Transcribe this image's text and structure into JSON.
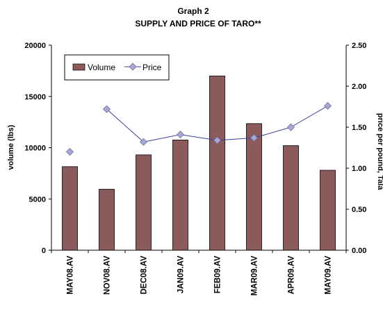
{
  "chart_data": {
    "type": "bar",
    "title": "Graph 2",
    "subtitle": "SUPPLY AND PRICE OF TARO**",
    "categories": [
      "MAY08.AV",
      "NOV08.AV",
      "DEC08.AV",
      "JAN09.AV",
      "FEB09.AV",
      "MAR09.AV",
      "APR09.AV",
      "MAY09.AV"
    ],
    "series": [
      {
        "name": "Volume",
        "type": "bar",
        "axis": "left",
        "color": "#8B5A5A",
        "values": [
          8150,
          5950,
          9300,
          10750,
          17000,
          12350,
          10200,
          7800
        ]
      },
      {
        "name": "Price",
        "type": "line",
        "axis": "right",
        "color": "#3B3F9C",
        "marker_color": "#A7A8D2",
        "values": [
          1.2,
          1.72,
          1.32,
          1.41,
          1.34,
          1.37,
          1.5,
          1.76
        ],
        "connected": [
          false,
          true,
          true,
          true,
          true,
          true,
          true,
          true
        ]
      }
    ],
    "ylabel": "volume (lbs)",
    "ylim": [
      0,
      20000
    ],
    "yticks": [
      "0",
      "5000",
      "10000",
      "15000",
      "20000"
    ],
    "y2label": "price per pound, Tala",
    "y2lim": [
      0,
      2.5
    ],
    "y2ticks": [
      "0.00",
      "0.50",
      "1.00",
      "1.50",
      "2.00",
      "2.50"
    ],
    "grid": false,
    "legend_position": "top-left"
  }
}
